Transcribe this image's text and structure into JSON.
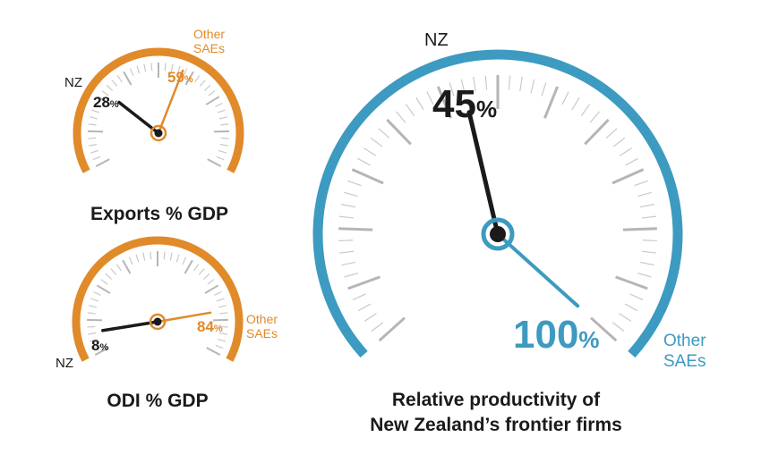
{
  "colors": {
    "nz": "#1a1a1a",
    "orange": "#e08a2a",
    "blue": "#3d9ac0",
    "tick": "#c9c9c9",
    "tick_major": "#b5b5b5"
  },
  "gauges": {
    "exports": {
      "title": "Exports % GDP",
      "nz_label": "NZ",
      "nz_value": "28",
      "nz_unit": "%",
      "other_label_line1": "Other",
      "other_label_line2": "SAEs",
      "other_value": "59",
      "other_unit": "%",
      "nz_fraction": 0.28,
      "other_fraction": 0.59
    },
    "odi": {
      "title": "ODI % GDP",
      "nz_label": "NZ",
      "nz_value": "8",
      "nz_unit": "%",
      "other_label_line1": "Other",
      "other_label_line2": "SAEs",
      "other_value": "84",
      "other_unit": "%",
      "nz_fraction": 0.08,
      "other_fraction": 0.84
    },
    "productivity": {
      "title_line1": "Relative productivity of",
      "title_line2": "New Zealand’s frontier firms",
      "nz_label": "NZ",
      "nz_value": "45",
      "nz_unit": "%",
      "other_label_line1": "Other",
      "other_label_line2": "SAEs",
      "other_value": "100",
      "other_unit": "%",
      "nz_fraction": 0.45,
      "other_fraction": 1.0
    }
  }
}
